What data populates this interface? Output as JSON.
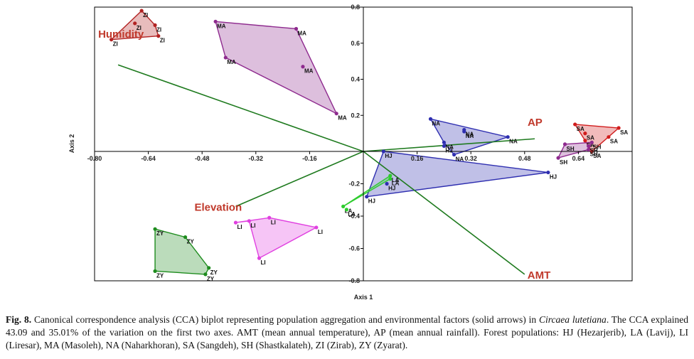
{
  "colors": {
    "HJ": "#2e2eb0",
    "LA": "#2ecc2e",
    "LI": "#e040e0",
    "MA": "#8e2a8e",
    "NA": "#2e2eb0",
    "SA": "#d11d1d",
    "SH": "#8e2a8e",
    "ZI": "#b22222",
    "ZY": "#1e8c1e",
    "arrow": "#1e7a1e",
    "arrow_label": "#c0392b"
  },
  "chart_data": {
    "type": "scatter",
    "xlabel": "Axis 1",
    "ylabel": "Axis 2",
    "xlim": [
      -0.8,
      0.8
    ],
    "ylim": [
      -0.8,
      0.8
    ],
    "xticks": [
      -0.8,
      -0.64,
      -0.48,
      -0.32,
      -0.16,
      0.16,
      0.32,
      0.48,
      0.64
    ],
    "xtick_labels": [
      "-0.80",
      "-0.64",
      "-0.48",
      "-0.32",
      "-0.16",
      "0.16",
      "0.32",
      "0.48",
      "0.64"
    ],
    "yticks": [
      0.8,
      0.6,
      0.4,
      0.2,
      -0.2,
      -0.4,
      -0.6,
      -0.8
    ],
    "ytick_labels": [
      "0.8",
      "0.6",
      "0.4",
      "0.2",
      "-0.2",
      "-0.4",
      "-0.6",
      "-0.8"
    ],
    "grid": false,
    "arrows": [
      {
        "name": "Humidity",
        "x": -0.73,
        "y": 0.48
      },
      {
        "name": "AP",
        "x": 0.51,
        "y": 0.07
      },
      {
        "name": "Elevation",
        "x": -0.38,
        "y": -0.34
      },
      {
        "name": "AMT",
        "x": 0.48,
        "y": -0.76
      }
    ],
    "groups": [
      {
        "name": "ZI",
        "hull": [
          0,
          1,
          2,
          3
        ],
        "points": [
          {
            "x": -0.66,
            "y": 0.78,
            "label": "ZI"
          },
          {
            "x": -0.62,
            "y": 0.7,
            "label": "ZI"
          },
          {
            "x": -0.61,
            "y": 0.64,
            "label": "ZI"
          },
          {
            "x": -0.75,
            "y": 0.62,
            "label": "ZI"
          },
          {
            "x": -0.68,
            "y": 0.71,
            "label": "ZI"
          }
        ]
      },
      {
        "name": "MA",
        "hull": [
          0,
          1,
          2,
          3
        ],
        "points": [
          {
            "x": -0.44,
            "y": 0.72,
            "label": "MA"
          },
          {
            "x": -0.2,
            "y": 0.68,
            "label": "MA"
          },
          {
            "x": -0.08,
            "y": 0.21,
            "label": "MA"
          },
          {
            "x": -0.41,
            "y": 0.52,
            "label": "MA"
          },
          {
            "x": -0.18,
            "y": 0.47,
            "label": "MA"
          }
        ]
      },
      {
        "name": "NA",
        "hull": [
          0,
          1,
          2,
          3
        ],
        "points": [
          {
            "x": 0.2,
            "y": 0.18,
            "label": "NA"
          },
          {
            "x": 0.43,
            "y": 0.08,
            "label": "NA"
          },
          {
            "x": 0.27,
            "y": -0.02,
            "label": "NA"
          },
          {
            "x": 0.24,
            "y": 0.05,
            "label": "NA"
          },
          {
            "x": 0.3,
            "y": 0.12,
            "label": "NA"
          },
          {
            "x": 0.3,
            "y": 0.11,
            "label": "NA"
          }
        ]
      },
      {
        "name": "HJ",
        "hull": [
          0,
          1,
          2
        ],
        "points": [
          {
            "x": 0.06,
            "y": 0.0,
            "label": "HJ"
          },
          {
            "x": 0.55,
            "y": -0.13,
            "label": "HJ"
          },
          {
            "x": 0.01,
            "y": -0.28,
            "label": "HJ"
          },
          {
            "x": 0.24,
            "y": 0.03,
            "label": "HJ"
          },
          {
            "x": 0.07,
            "y": -0.2,
            "label": "HJ"
          }
        ]
      },
      {
        "name": "LA",
        "hull": [
          0,
          1,
          2
        ],
        "points": [
          {
            "x": 0.08,
            "y": -0.15,
            "label": "LA"
          },
          {
            "x": 0.08,
            "y": -0.17,
            "label": "LA"
          },
          {
            "x": -0.06,
            "y": -0.34,
            "label": "LA"
          },
          {
            "x": -0.05,
            "y": -0.36,
            "label": "LA"
          }
        ]
      },
      {
        "name": "LI",
        "hull": [
          0,
          1,
          2,
          3,
          4
        ],
        "points": [
          {
            "x": -0.38,
            "y": -0.44,
            "label": "LI"
          },
          {
            "x": -0.28,
            "y": -0.41,
            "label": "LI"
          },
          {
            "x": -0.14,
            "y": -0.47,
            "label": "LI"
          },
          {
            "x": -0.31,
            "y": -0.66,
            "label": "LI"
          },
          {
            "x": -0.34,
            "y": -0.43,
            "label": "LI"
          }
        ]
      },
      {
        "name": "ZY",
        "hull": [
          0,
          1,
          2,
          3,
          4
        ],
        "points": [
          {
            "x": -0.62,
            "y": -0.48,
            "label": "ZY"
          },
          {
            "x": -0.53,
            "y": -0.53,
            "label": "ZY"
          },
          {
            "x": -0.46,
            "y": -0.72,
            "label": "ZY"
          },
          {
            "x": -0.47,
            "y": -0.76,
            "label": "ZY"
          },
          {
            "x": -0.62,
            "y": -0.74,
            "label": "ZY"
          }
        ]
      },
      {
        "name": "SA",
        "hull": [
          0,
          1,
          2,
          3
        ],
        "points": [
          {
            "x": 0.63,
            "y": 0.15,
            "label": "SA"
          },
          {
            "x": 0.76,
            "y": 0.13,
            "label": "SA"
          },
          {
            "x": 0.68,
            "y": 0.0,
            "label": "SA"
          },
          {
            "x": 0.66,
            "y": 0.06,
            "label": "SA"
          },
          {
            "x": 0.73,
            "y": 0.08,
            "label": "SA"
          },
          {
            "x": 0.66,
            "y": 0.1,
            "label": "SA"
          }
        ]
      },
      {
        "name": "SH",
        "hull": [
          0,
          1,
          2,
          3
        ],
        "points": [
          {
            "x": 0.6,
            "y": 0.04,
            "label": "SH"
          },
          {
            "x": 0.68,
            "y": 0.05,
            "label": "SH"
          },
          {
            "x": 0.67,
            "y": 0.01,
            "label": "SH"
          },
          {
            "x": 0.58,
            "y": -0.04,
            "label": "SH"
          },
          {
            "x": 0.67,
            "y": 0.03,
            "label": "SH"
          }
        ]
      }
    ]
  },
  "caption": {
    "lead": "Fig. 8.",
    "text1": " Canonical correspondence analysis (CCA) biplot representing population aggregation and environmental factors (solid arrows) in ",
    "species": "Circaea lutetiana",
    "text2": ". The CCA explained 43.09 and 35.01% of the variation on the first two axes. AMT (mean annual temperature), AP (mean annual rainfall). Forest populations: HJ (Hezarjerib), LA (Lavij), LI (Liresar), MA (Masoleh), NA (Naharkhoran), SA (Sangdeh), SH (Shastkalateh), ZI (Zirab), ZY (Zyarat)."
  }
}
